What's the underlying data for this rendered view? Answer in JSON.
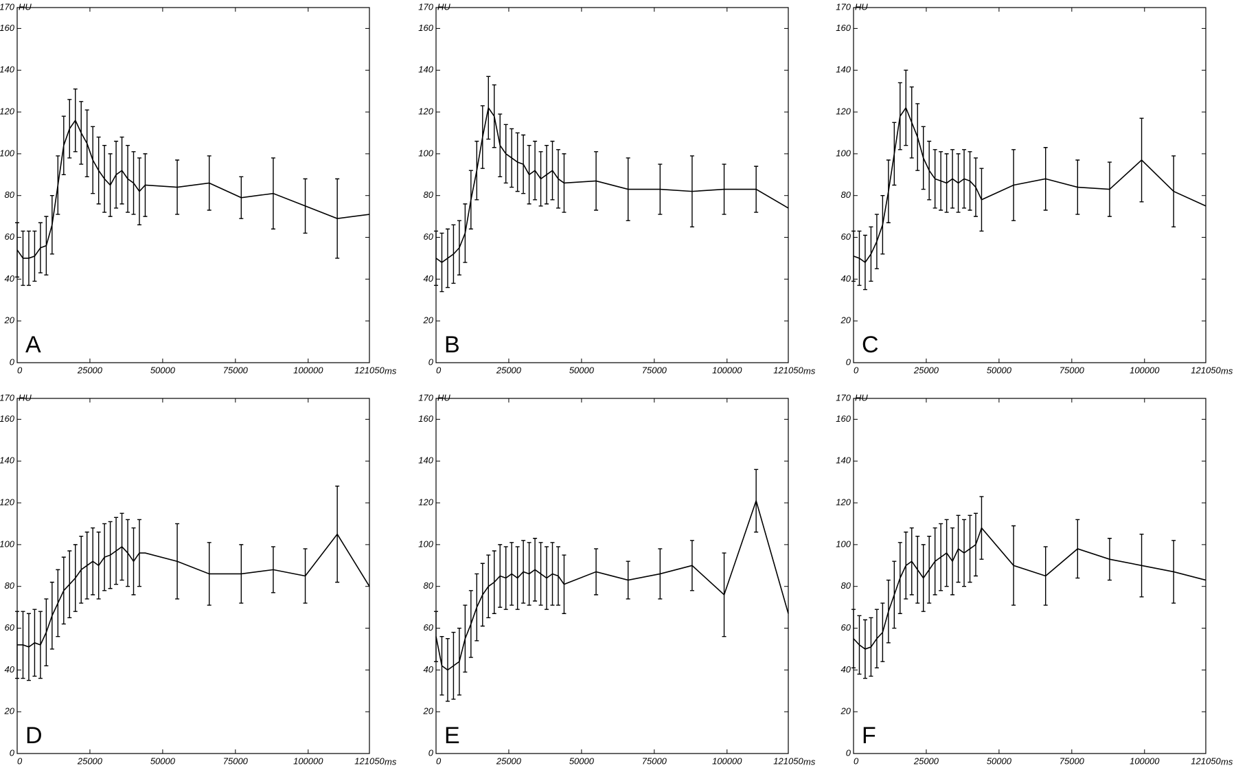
{
  "chart_data": [
    {
      "type": "line",
      "label": "A",
      "color": "#000000",
      "x_unit": "ms",
      "y_unit": "HU",
      "xlim": [
        0,
        121050
      ],
      "xticks": [
        0,
        25000,
        50000,
        75000,
        100000,
        121050
      ],
      "ylim": [
        0,
        170
      ],
      "yticks": [
        0,
        20,
        40,
        60,
        80,
        100,
        120,
        140,
        160,
        170
      ],
      "x": [
        0,
        2000,
        4000,
        6000,
        8000,
        10000,
        12000,
        14000,
        16000,
        18000,
        20000,
        22000,
        24000,
        26000,
        28000,
        30000,
        32000,
        34000,
        36000,
        38000,
        40000,
        42000,
        44000,
        55000,
        66000,
        77000,
        88000,
        99000,
        110000,
        121050
      ],
      "values": [
        54,
        50,
        50,
        51,
        55,
        56,
        66,
        85,
        104,
        112,
        116,
        110,
        105,
        97,
        92,
        88,
        85,
        90,
        92,
        88,
        86,
        82,
        85,
        84,
        86,
        79,
        81,
        75,
        69,
        71
      ],
      "errors": [
        13,
        13,
        13,
        12,
        12,
        14,
        14,
        14,
        14,
        14,
        15,
        15,
        16,
        16,
        16,
        16,
        15,
        16,
        16,
        16,
        15,
        16,
        15,
        13,
        13,
        10,
        17,
        13,
        19,
        null
      ]
    },
    {
      "type": "line",
      "label": "B",
      "color": "#000000",
      "x_unit": "ms",
      "y_unit": "HU",
      "xlim": [
        0,
        121050
      ],
      "xticks": [
        0,
        25000,
        50000,
        75000,
        100000,
        121050
      ],
      "ylim": [
        0,
        170
      ],
      "yticks": [
        0,
        20,
        40,
        60,
        80,
        100,
        120,
        140,
        160,
        170
      ],
      "x": [
        0,
        2000,
        4000,
        6000,
        8000,
        10000,
        12000,
        14000,
        16000,
        18000,
        20000,
        22000,
        24000,
        26000,
        28000,
        30000,
        32000,
        34000,
        36000,
        38000,
        40000,
        42000,
        44000,
        55000,
        66000,
        77000,
        88000,
        99000,
        110000,
        121050
      ],
      "values": [
        50,
        48,
        50,
        52,
        55,
        62,
        78,
        92,
        108,
        122,
        118,
        104,
        100,
        98,
        96,
        95,
        90,
        92,
        88,
        90,
        92,
        88,
        86,
        87,
        83,
        83,
        82,
        83,
        83,
        74
      ],
      "errors": [
        13,
        14,
        14,
        14,
        13,
        14,
        14,
        14,
        15,
        15,
        15,
        15,
        14,
        14,
        14,
        14,
        14,
        14,
        13,
        14,
        14,
        14,
        14,
        14,
        15,
        12,
        17,
        12,
        11,
        null
      ]
    },
    {
      "type": "line",
      "label": "C",
      "color": "#000000",
      "x_unit": "ms",
      "y_unit": "HU",
      "xlim": [
        0,
        121050
      ],
      "xticks": [
        0,
        25000,
        50000,
        75000,
        100000,
        121050
      ],
      "ylim": [
        0,
        170
      ],
      "yticks": [
        0,
        20,
        40,
        60,
        80,
        100,
        120,
        140,
        160,
        170
      ],
      "x": [
        0,
        2000,
        4000,
        6000,
        8000,
        10000,
        12000,
        14000,
        16000,
        18000,
        20000,
        22000,
        24000,
        26000,
        28000,
        30000,
        32000,
        34000,
        36000,
        38000,
        40000,
        42000,
        44000,
        55000,
        66000,
        77000,
        88000,
        99000,
        110000,
        121050
      ],
      "values": [
        51,
        50,
        48,
        52,
        58,
        66,
        82,
        100,
        118,
        122,
        115,
        108,
        98,
        92,
        88,
        87,
        86,
        88,
        86,
        88,
        87,
        84,
        78,
        85,
        88,
        84,
        83,
        97,
        82,
        75
      ],
      "errors": [
        12,
        13,
        13,
        13,
        13,
        14,
        15,
        15,
        16,
        18,
        17,
        16,
        15,
        14,
        14,
        14,
        14,
        14,
        14,
        14,
        14,
        14,
        15,
        17,
        15,
        13,
        13,
        20,
        17,
        null
      ]
    },
    {
      "type": "line",
      "label": "D",
      "color": "#000000",
      "x_unit": "ms",
      "y_unit": "HU",
      "xlim": [
        0,
        121050
      ],
      "xticks": [
        0,
        25000,
        50000,
        75000,
        100000,
        121050
      ],
      "ylim": [
        0,
        170
      ],
      "yticks": [
        0,
        20,
        40,
        60,
        80,
        100,
        120,
        140,
        160,
        170
      ],
      "x": [
        0,
        2000,
        4000,
        6000,
        8000,
        10000,
        12000,
        14000,
        16000,
        18000,
        20000,
        22000,
        24000,
        26000,
        28000,
        30000,
        32000,
        34000,
        36000,
        38000,
        40000,
        42000,
        44000,
        55000,
        66000,
        77000,
        88000,
        99000,
        110000,
        121050
      ],
      "values": [
        52,
        52,
        51,
        53,
        52,
        58,
        66,
        72,
        78,
        81,
        84,
        88,
        90,
        92,
        90,
        94,
        95,
        97,
        99,
        96,
        92,
        96,
        96,
        92,
        86,
        86,
        88,
        85,
        105,
        80
      ],
      "errors": [
        16,
        16,
        16,
        16,
        16,
        16,
        16,
        16,
        16,
        16,
        16,
        16,
        16,
        16,
        16,
        16,
        16,
        16,
        16,
        16,
        16,
        16,
        null,
        18,
        15,
        14,
        11,
        13,
        23,
        null
      ]
    },
    {
      "type": "line",
      "label": "E",
      "color": "#000000",
      "x_unit": "ms",
      "y_unit": "HU",
      "xlim": [
        0,
        121050
      ],
      "xticks": [
        0,
        25000,
        50000,
        75000,
        100000,
        121050
      ],
      "ylim": [
        0,
        170
      ],
      "yticks": [
        0,
        20,
        40,
        60,
        80,
        100,
        120,
        140,
        160,
        170
      ],
      "x": [
        0,
        2000,
        4000,
        6000,
        8000,
        10000,
        12000,
        14000,
        16000,
        18000,
        20000,
        22000,
        24000,
        26000,
        28000,
        30000,
        32000,
        34000,
        36000,
        38000,
        40000,
        42000,
        44000,
        55000,
        66000,
        77000,
        88000,
        99000,
        110000,
        121050
      ],
      "values": [
        56,
        42,
        40,
        42,
        44,
        55,
        62,
        70,
        76,
        80,
        82,
        85,
        84,
        86,
        84,
        87,
        86,
        88,
        86,
        84,
        86,
        85,
        81,
        87,
        83,
        86,
        90,
        76,
        121,
        67
      ],
      "errors": [
        12,
        14,
        15,
        16,
        16,
        16,
        16,
        16,
        15,
        15,
        15,
        15,
        15,
        15,
        15,
        15,
        15,
        15,
        15,
        15,
        15,
        14,
        14,
        11,
        9,
        12,
        12,
        20,
        15,
        null
      ]
    },
    {
      "type": "line",
      "label": "F",
      "color": "#000000",
      "x_unit": "ms",
      "y_unit": "HU",
      "xlim": [
        0,
        121050
      ],
      "xticks": [
        0,
        25000,
        50000,
        75000,
        100000,
        121050
      ],
      "ylim": [
        0,
        170
      ],
      "yticks": [
        0,
        20,
        40,
        60,
        80,
        100,
        120,
        140,
        160,
        170
      ],
      "x": [
        0,
        2000,
        4000,
        6000,
        8000,
        10000,
        12000,
        14000,
        16000,
        18000,
        20000,
        22000,
        24000,
        26000,
        28000,
        30000,
        32000,
        34000,
        36000,
        38000,
        40000,
        42000,
        44000,
        55000,
        66000,
        77000,
        88000,
        99000,
        110000,
        121050
      ],
      "values": [
        55,
        52,
        50,
        51,
        55,
        58,
        68,
        76,
        84,
        90,
        92,
        88,
        84,
        88,
        92,
        94,
        96,
        92,
        98,
        96,
        98,
        100,
        108,
        90,
        85,
        98,
        93,
        90,
        87,
        83
      ],
      "errors": [
        14,
        14,
        14,
        14,
        14,
        14,
        15,
        16,
        17,
        16,
        16,
        16,
        16,
        16,
        16,
        16,
        16,
        16,
        16,
        16,
        16,
        15,
        15,
        19,
        14,
        14,
        10,
        15,
        15,
        null
      ]
    }
  ]
}
